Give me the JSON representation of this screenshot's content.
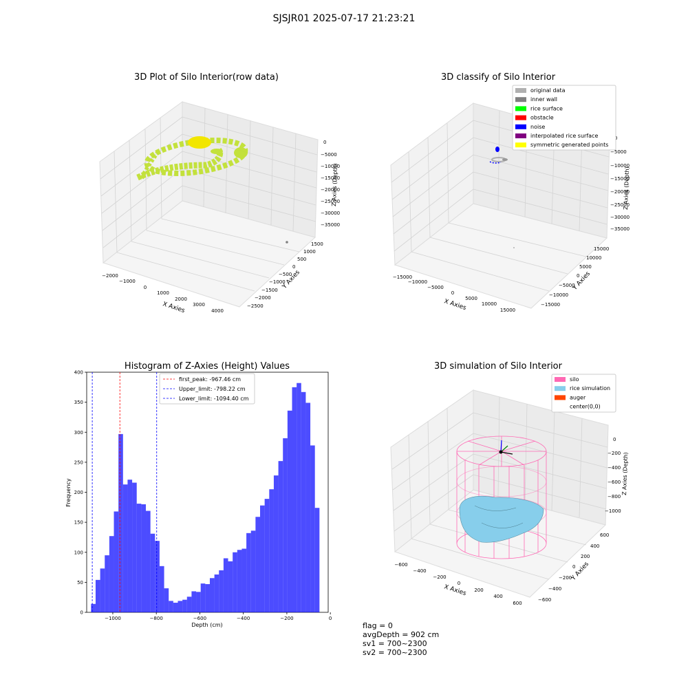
{
  "suptitle": "SJSJR01 2025-07-17 21:23:21",
  "panels": {
    "raw": {
      "title": "3D Plot of Silo Interior(row data)",
      "xlabel": "X Axies",
      "ylabel": "Y Axies",
      "zlabel": "Z Axies (Depth)",
      "xticks": [
        "−2000",
        "−1000",
        "0",
        "1000",
        "2000",
        "3000",
        "4000"
      ],
      "yticks": [
        "1500",
        "1000",
        "500",
        "0",
        "−500",
        "−1000",
        "−1500",
        "−2000",
        "−2500"
      ],
      "zticks": [
        "0",
        "−5000",
        "−10000",
        "−15000",
        "−20000",
        "−25000",
        "−30000",
        "−35000"
      ]
    },
    "classify": {
      "title": "3D classify of Silo Interior",
      "xlabel": "X Axies",
      "ylabel": "Y Axies",
      "zlabel": "Z Axies (Depth)",
      "xticks": [
        "−15000",
        "−10000",
        "−5000",
        "0",
        "5000",
        "10000",
        "15000"
      ],
      "yticks": [
        "15000",
        "10000",
        "5000",
        "0",
        "−5000",
        "−10000",
        "−15000"
      ],
      "zticks": [
        "0",
        "−5000",
        "−10000",
        "−15000",
        "−20000",
        "−25000",
        "−30000",
        "−35000"
      ],
      "legend": [
        {
          "label": "original data",
          "color": "#b0b0b0"
        },
        {
          "label": "inner wall",
          "color": "#808080"
        },
        {
          "label": "rice surface",
          "color": "#00ff00"
        },
        {
          "label": "obstacle",
          "color": "#ff0000"
        },
        {
          "label": "noise",
          "color": "#0000ff"
        },
        {
          "label": "interpolated rice surface",
          "color": "#800080"
        },
        {
          "label": "symmetric generated points",
          "color": "#ffff00"
        }
      ]
    },
    "simulation": {
      "title": "3D simulation of Silo Interior",
      "xlabel": "X Axies",
      "ylabel": "Y Axies",
      "zlabel": "Z Axies (Depth)",
      "xticks": [
        "−600",
        "−400",
        "−200",
        "0",
        "200",
        "400",
        "600"
      ],
      "yticks": [
        "600",
        "400",
        "200",
        "0",
        "−200",
        "−400",
        "−600"
      ],
      "zticks": [
        "0",
        "−200",
        "−400",
        "−600",
        "−800",
        "−1000"
      ],
      "legend": [
        {
          "label": "silo",
          "color": "#ff69b4"
        },
        {
          "label": "rice simulation",
          "color": "#87ceeb"
        },
        {
          "label": "auger",
          "color": "#ff4500"
        },
        {
          "label": "center(0,0)",
          "color": ""
        }
      ]
    }
  },
  "footer": {
    "flag": "flag = 0",
    "avg": "avgDepth = 902 cm",
    "sv1": "sv1 = 700~2300",
    "sv2": "sv2 = 700~2300"
  },
  "chart_data": {
    "type": "bar",
    "title": "Histogram of Z-Axies (Height) Values",
    "xlabel": "Depth (cm)",
    "ylabel": "Frequency",
    "xlim": [
      -1120,
      -10
    ],
    "ylim": [
      0,
      400
    ],
    "xticks": [
      -1000,
      -800,
      -600,
      -400,
      -200,
      0
    ],
    "xtick_labels": [
      "−1000",
      "−800",
      "−600",
      "−400",
      "−200",
      "0"
    ],
    "yticks": [
      0,
      50,
      100,
      150,
      200,
      250,
      300,
      350,
      400
    ],
    "bar_color": "#0000ff",
    "bin_start": -1100,
    "bin_width": 21,
    "values": [
      14,
      54,
      73,
      95,
      127,
      168,
      297,
      213,
      221,
      216,
      181,
      180,
      169,
      131,
      119,
      77,
      40,
      19,
      16,
      19,
      21,
      26,
      35,
      34,
      48,
      47,
      57,
      63,
      70,
      90,
      85,
      100,
      104,
      106,
      132,
      136,
      159,
      178,
      189,
      205,
      228,
      252,
      290,
      336,
      375,
      382,
      367,
      349,
      278,
      174
    ],
    "vlines": [
      {
        "label": "first_peak: -967.46 cm",
        "x": -967.46,
        "color": "#ff0000"
      },
      {
        "label": "Upper_limit: -798.22 cm",
        "x": -798.22,
        "color": "#0000ff"
      },
      {
        "label": "Lower_limit: -1094.40 cm",
        "x": -1094.4,
        "color": "#0000ff"
      }
    ]
  }
}
